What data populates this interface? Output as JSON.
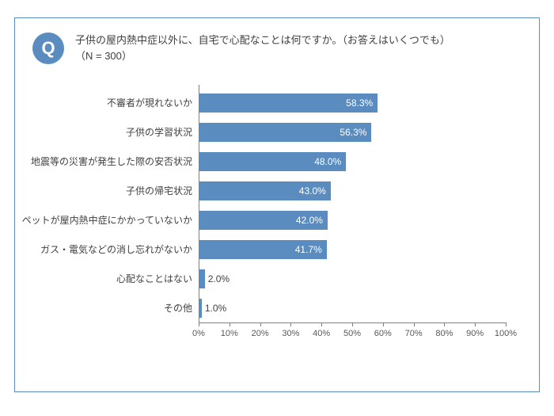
{
  "frame": {
    "border_color": "#5a8cc0"
  },
  "q_badge": {
    "letter": "Q",
    "bg_color": "#5a8cc0",
    "text_color": "#ffffff",
    "fontsize": 22
  },
  "title": {
    "main": "子供の屋内熱中症以外に、自宅で心配なことは何ですか。（お答えはいくつでも）",
    "sub": "（N = 300）",
    "color": "#404040",
    "fontsize": 13
  },
  "chart": {
    "type": "bar-horizontal",
    "xlim": [
      0,
      100
    ],
    "xtick_step": 10,
    "xtick_suffix": "%",
    "axis_color": "#808080",
    "tick_label_color": "#595959",
    "tick_label_fontsize": 11,
    "bar_color": "#5a8cc0",
    "value_inside_color": "#ffffff",
    "value_outside_color": "#404040",
    "value_fontsize": 12,
    "label_color": "#404040",
    "label_fontsize": 12,
    "value_suffix": "%",
    "inside_threshold": 10,
    "items": [
      {
        "label": "不審者が現れないか",
        "value": 58.3
      },
      {
        "label": "子供の学習状況",
        "value": 56.3
      },
      {
        "label": "地震等の災害が発生した際の安否状況",
        "value": 48.0
      },
      {
        "label": "子供の帰宅状況",
        "value": 43.0
      },
      {
        "label": "ペットが屋内熱中症にかかっていないか",
        "value": 42.0
      },
      {
        "label": "ガス・電気などの消し忘れがないか",
        "value": 41.7
      },
      {
        "label": "心配なことはない",
        "value": 2.0
      },
      {
        "label": "その他",
        "value": 1.0
      }
    ]
  }
}
